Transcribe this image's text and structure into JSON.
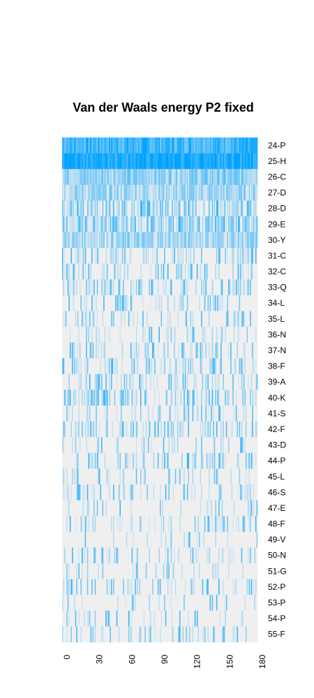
{
  "chart_data": {
    "type": "heatmap",
    "title": "Van der Waals energy P2 fixed",
    "xlabel": "",
    "ylabel": "",
    "xlim": [
      0,
      180
    ],
    "x_ticks": [
      "0",
      "30",
      "60",
      "90",
      "120",
      "150",
      "180"
    ],
    "rows": [
      "24-P",
      "25-H",
      "26-C",
      "27-D",
      "28-D",
      "29-E",
      "30-Y",
      "31-C",
      "32-C",
      "33-Q",
      "34-L",
      "35-L",
      "36-N",
      "37-N",
      "38-F",
      "39-A",
      "40-K",
      "41-S",
      "42-F",
      "43-D",
      "44-P",
      "45-L",
      "46-S",
      "47-E",
      "48-F",
      "49-V",
      "50-N",
      "51-G",
      "52-P",
      "53-P",
      "54-P",
      "55-F"
    ],
    "color_low": "#efefef",
    "color_high": "#00a2ff",
    "row_mean_intensity": [
      0.75,
      0.95,
      0.4,
      0.3,
      0.12,
      0.15,
      0.3,
      0.06,
      0.06,
      0.08,
      0.05,
      0.05,
      0.05,
      0.05,
      0.07,
      0.07,
      0.08,
      0.05,
      0.07,
      0.04,
      0.05,
      0.03,
      0.05,
      0.03,
      0.05,
      0.02,
      0.05,
      0.03,
      0.06,
      0.03,
      0.04,
      0.04
    ],
    "grid": false,
    "legend": "none"
  }
}
